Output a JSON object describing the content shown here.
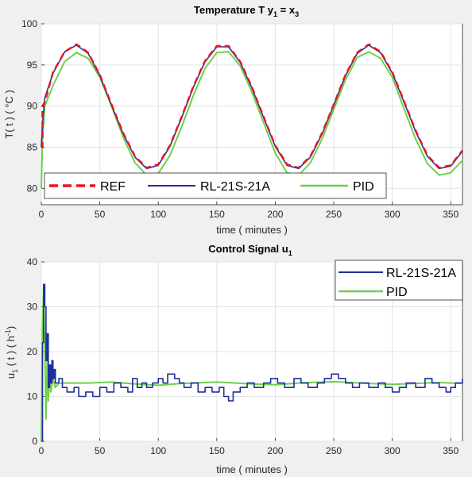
{
  "colors": {
    "figure_bg": "#f0f0f0",
    "axes_bg": "#ffffff",
    "grid": "#e3e3e3",
    "ref": "#e8141b",
    "rl": "#1f2f9e",
    "pid": "#6fd04a"
  },
  "chart_data": [
    {
      "type": "line",
      "title": "Temperature T  y",
      "title_sub1": "1",
      "title_mid": " = x",
      "title_sub2": "3",
      "xlabel": "time ( minutes )",
      "ylabel": "T( t ) ( °C )",
      "xlim": [
        0,
        360
      ],
      "ylim": [
        78,
        100
      ],
      "xticks": [
        0,
        50,
        100,
        150,
        200,
        250,
        300,
        350
      ],
      "yticks": [
        80,
        85,
        90,
        95,
        100
      ],
      "grid": true,
      "legend_position": "bottom",
      "legend_orientation": "horizontal",
      "series": [
        {
          "name": "REF",
          "style": "dashed",
          "x": [
            0,
            1,
            1,
            3,
            10,
            20,
            30,
            40,
            50,
            60,
            70,
            80,
            90,
            100,
            110,
            120,
            130,
            140,
            150,
            160,
            170,
            180,
            190,
            200,
            210,
            220,
            230,
            240,
            250,
            260,
            270,
            280,
            290,
            300,
            310,
            320,
            330,
            340,
            350,
            360
          ],
          "y": [
            85,
            85,
            90,
            90.5,
            94.1,
            96.6,
            97.5,
            96.5,
            93.8,
            90.2,
            86.7,
            83.9,
            82.5,
            82.9,
            85.2,
            88.7,
            92.4,
            95.5,
            97.3,
            97.3,
            95.4,
            92.3,
            88.7,
            85.2,
            82.9,
            82.5,
            83.9,
            86.7,
            90.2,
            93.8,
            96.5,
            97.5,
            96.6,
            94.1,
            90.6,
            87.0,
            84.0,
            82.5,
            82.8,
            84.6
          ]
        },
        {
          "name": "RL-21S-21A",
          "style": "solid",
          "x": [
            0,
            1,
            3,
            10,
            20,
            30,
            40,
            50,
            60,
            70,
            80,
            90,
            100,
            110,
            120,
            130,
            140,
            150,
            160,
            170,
            180,
            190,
            200,
            210,
            220,
            230,
            240,
            250,
            260,
            270,
            280,
            290,
            300,
            310,
            320,
            330,
            340,
            350,
            360
          ],
          "y": [
            85,
            88,
            91,
            94.0,
            96.6,
            97.4,
            96.4,
            93.7,
            90.1,
            86.6,
            83.8,
            82.4,
            82.8,
            85.1,
            88.6,
            92.3,
            95.4,
            97.2,
            97.2,
            95.3,
            92.2,
            88.6,
            85.1,
            82.8,
            82.4,
            83.8,
            86.6,
            90.1,
            93.7,
            96.4,
            97.4,
            96.5,
            94.0,
            90.5,
            86.9,
            83.9,
            82.4,
            82.7,
            84.5
          ]
        },
        {
          "name": "PID",
          "style": "solid",
          "x": [
            0,
            1,
            3,
            10,
            20,
            30,
            40,
            50,
            60,
            70,
            80,
            90,
            100,
            110,
            120,
            130,
            140,
            150,
            160,
            170,
            180,
            190,
            200,
            210,
            220,
            230,
            240,
            250,
            260,
            270,
            280,
            290,
            300,
            310,
            320,
            330,
            340,
            350,
            360
          ],
          "y": [
            80,
            86,
            90,
            92.5,
            95.4,
            96.5,
            95.8,
            93.5,
            90.0,
            86.2,
            83.1,
            81.6,
            81.8,
            84.0,
            87.5,
            91.3,
            94.6,
            96.5,
            96.6,
            94.9,
            91.7,
            88.0,
            84.3,
            81.9,
            81.6,
            83.1,
            86.0,
            89.6,
            93.2,
            95.9,
            96.6,
            95.8,
            93.5,
            89.7,
            86.0,
            83.0,
            81.6,
            81.9,
            83.4
          ]
        }
      ]
    },
    {
      "type": "line",
      "title": "Control Signal u",
      "title_sub1": "1",
      "xlabel": "time ( minutes )",
      "ylabel": "u",
      "ylabel_sub": "1",
      "ylabel_rest": " ( t )  ( h",
      "ylabel_sup": "-1",
      "ylabel_end": ")",
      "xlim": [
        0,
        360
      ],
      "ylim": [
        0,
        40
      ],
      "xticks": [
        0,
        50,
        100,
        150,
        200,
        250,
        300,
        350
      ],
      "yticks": [
        0,
        10,
        20,
        30,
        40
      ],
      "grid": true,
      "legend_position": "top-right",
      "legend_orientation": "vertical",
      "series": [
        {
          "name": "RL-21S-21A",
          "style": "solid",
          "x": [
            0,
            1,
            2,
            3,
            4,
            5,
            6,
            7,
            8,
            9,
            10,
            11,
            12,
            15,
            18,
            22,
            28,
            32,
            38,
            44,
            50,
            56,
            62,
            68,
            74,
            78,
            82,
            86,
            90,
            95,
            100,
            104,
            108,
            114,
            118,
            122,
            128,
            134,
            140,
            146,
            152,
            156,
            160,
            164,
            170,
            176,
            182,
            190,
            196,
            202,
            208,
            216,
            222,
            228,
            236,
            242,
            248,
            254,
            260,
            266,
            272,
            280,
            288,
            294,
            300,
            306,
            312,
            320,
            328,
            334,
            340,
            346,
            350,
            354,
            358,
            360
          ],
          "y": [
            0,
            22,
            35,
            30,
            18,
            24,
            12,
            17,
            13,
            18,
            14,
            16,
            13,
            14,
            12,
            11,
            12,
            10,
            11,
            10,
            12,
            11,
            13,
            12,
            11,
            14,
            12,
            13,
            12,
            13,
            14,
            13,
            15,
            14,
            13,
            12,
            13,
            11,
            12,
            11,
            12,
            10,
            9,
            11,
            12,
            13,
            12,
            13,
            14,
            13,
            12,
            14,
            13,
            12,
            13,
            14,
            15,
            14,
            13,
            12,
            13,
            12,
            13,
            12,
            11,
            12,
            13,
            12,
            14,
            13,
            12,
            11,
            12,
            13,
            13,
            14
          ]
        },
        {
          "name": "PID",
          "style": "solid",
          "x": [
            0,
            1,
            2,
            3,
            4,
            5,
            6,
            7,
            8,
            10,
            12,
            15,
            20,
            40,
            60,
            80,
            100,
            120,
            150,
            180,
            200,
            220,
            250,
            280,
            300,
            320,
            340,
            360
          ],
          "y": [
            0,
            25,
            35,
            20,
            5,
            18,
            9,
            15,
            11,
            14,
            12,
            13,
            13,
            13,
            13.2,
            12.8,
            12.5,
            12.9,
            13.2,
            12.8,
            12.6,
            13.0,
            13.3,
            12.9,
            12.7,
            12.9,
            13.1,
            12.9
          ]
        }
      ]
    }
  ]
}
